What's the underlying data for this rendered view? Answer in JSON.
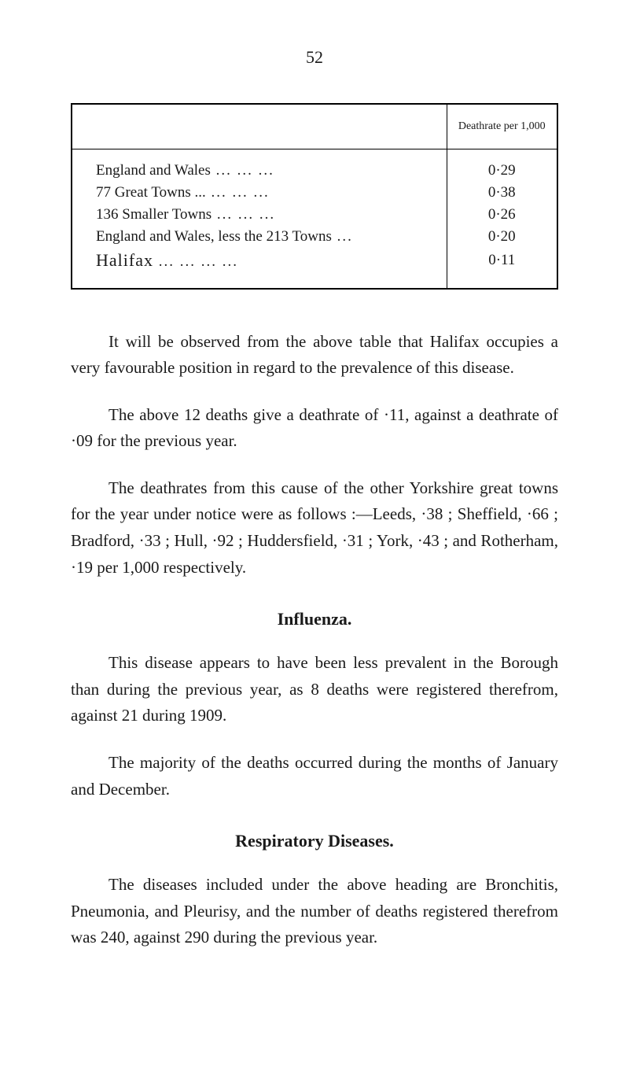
{
  "page_number": "52",
  "table": {
    "header_rate": "Deathrate per 1,000",
    "rows": [
      {
        "label": "England and Wales",
        "dots": "...            ...          ...",
        "value": "0·29",
        "halifax": false
      },
      {
        "label": "77 Great Towns ...",
        "dots": "           ...          ...          ...",
        "value": "0·38",
        "halifax": false
      },
      {
        "label": "136 Smaller Towns",
        "dots": "          ...          ...          ...",
        "value": "0·26",
        "halifax": false
      },
      {
        "label": "England and Wales, less the 213 Towns",
        "dots": "    ...",
        "value": "0·20",
        "halifax": false
      },
      {
        "label": "Halifax",
        "dots": "            ...          ...          ...          ...",
        "value": "0·11",
        "halifax": true
      }
    ]
  },
  "para1": "It will be observed from the above table that Halifax occupies a very favourable position in regard to the prevalence of this disease.",
  "para2": "The above 12 deaths give a deathrate of ·11, against a deathrate of ·09 for the previous year.",
  "para3": "The deathrates from this cause of the other Yorkshire great towns for the year under notice were as follows :—Leeds, ·38 ; Sheffield, ·66 ; Bradford, ·33 ; Hull, ·92 ; Huddersfield, ·31 ; York, ·43 ; and Rotherham, ·19 per 1,000 respectively.",
  "heading1": "Influenza.",
  "para4": "This disease appears to have been less prevalent in the Borough than during the previous year, as 8 deaths were registered therefrom, against 21 during 1909.",
  "para5": "The majority of the deaths occurred during the months of January and December.",
  "heading2": "Respiratory Diseases.",
  "para6": "The diseases included under the above heading are Bronchitis, Pneumonia, and Pleurisy, and the number of deaths registered therefrom was 240, against 290 during the previous year."
}
